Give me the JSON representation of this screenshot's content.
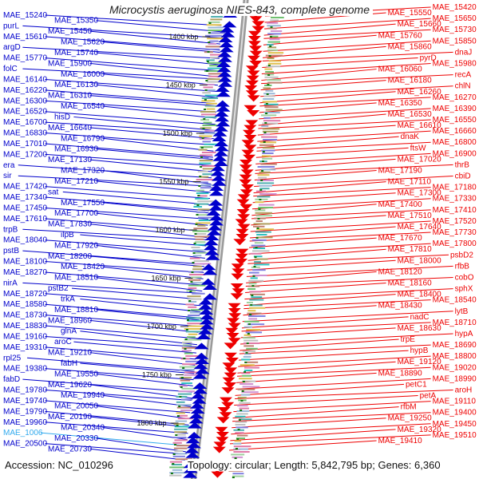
{
  "header": {
    "title": "Microcystis aeruginosa NIES-843, complete genome"
  },
  "footer": {
    "accession": "Accession: NC_010296",
    "topology": "Topology: circular; Length: 5,842,795 bp; Genes: 6,360"
  },
  "colors": {
    "minus_strand": "#0000cc",
    "plus_strand": "#ee0000",
    "highlight": "#33aaee",
    "backbone": "#888888",
    "tick_marks": "#117711"
  },
  "scale_labels": [
    "1400 kbp",
    "1450 kbp",
    "1500 kbp",
    "1550 kbp",
    "1600 kbp",
    "1650 kbp",
    "1700 kbp",
    "1750 kbp",
    "1800 kbp"
  ],
  "left_genes": [
    "MAE_15240",
    "MAE_15350",
    "purL",
    "MAE_15450",
    "MAE_15610",
    "MAE_15620",
    "argD",
    "MAE_15740",
    "MAE_15770",
    "MAE_15900",
    "folC",
    "MAE_16000",
    "MAE_16140",
    "MAE_16130",
    "MAE_16220",
    "MAE_16310",
    "MAE_16300",
    "MAE_16540",
    "MAE_16520",
    "hisD",
    "MAE_16700",
    "MAE_16640",
    "MAE_16830",
    "MAE_16790",
    "MAE_17010",
    "MAE_16930",
    "MAE_17200",
    "MAE_17130",
    "era",
    "MAE_17320",
    "sir",
    "MAE_17210",
    "MAE_17420",
    "sat",
    "MAE_17340",
    "MAE_17550",
    "MAE_17450",
    "MAE_17700",
    "MAE_17610",
    "MAE_17830",
    "trpB",
    "ilpB",
    "MAE_18040",
    "MAE_17920",
    "pstB",
    "MAE_18200",
    "MAE_18100",
    "MAE_18420",
    "MAE_18270",
    "MAE_18510",
    "nirA",
    "pstB2",
    "MAE_18720",
    "trkA",
    "MAE_18580",
    "MAE_18810",
    "MAE_18730",
    "MAE_18960",
    "MAE_18830",
    "glnA",
    "MAE_19160",
    "aroC",
    "MAE_19310",
    "MAE_19210",
    "rpl25",
    "fabH",
    "MAE_19380",
    "MAE_19550",
    "fabD",
    "MAE_19620",
    "MAE_19780",
    "MAE_19940",
    "MAE_19740",
    "MAE_20050",
    "MAE_19790",
    "MAE_20190",
    "MAE_19960",
    "MAE_20340",
    "MAE_1006",
    "MAE_20330",
    "MAE_20500",
    "MAE_20730"
  ],
  "right_genes": [
    "MAE_15420",
    "MAE_15550",
    "MAE_15650",
    "MAE_15660",
    "MAE_15730",
    "MAE_15760",
    "MAE_15850",
    "MAE_15860",
    "dnaJ",
    "pyrD",
    "MAE_15980",
    "MAE_16060",
    "recA",
    "MAE_16180",
    "chlN",
    "MAE_16260",
    "MAE_16270",
    "MAE_16350",
    "MAE_16390",
    "MAE_16530",
    "MAE_16550",
    "MAE_16610",
    "MAE_16660",
    "dnaK",
    "MAE_16800",
    "ftsW",
    "MAE_16900",
    "MAE_17020",
    "thrB",
    "MAE_17190",
    "cbiD",
    "MAE_17110",
    "MAE_17180",
    "MAE_17300",
    "MAE_17330",
    "MAE_17400",
    "MAE_17410",
    "MAE_17510",
    "MAE_17520",
    "MAE_17640",
    "MAE_17730",
    "MAE_17670",
    "MAE_17800",
    "MAE_17810",
    "psbD2",
    "MAE_18000",
    "rfbB",
    "MAE_18120",
    "cobO",
    "MAE_18160",
    "sphX",
    "MAE_18400",
    "MAE_18540",
    "MAE_18430",
    "lytB",
    "nadC",
    "MAE_18710",
    "MAE_18630",
    "hypA",
    "trpE",
    "MAE_18690",
    "hypB",
    "MAE_18800",
    "MAE_19120",
    "MAE_19020",
    "MAE_18890",
    "MAE_18990",
    "petC1",
    "aroH",
    "petA",
    "MAE_19110",
    "rfbM",
    "MAE_19400",
    "MAE_19250",
    "MAE_19450",
    "MAE_19320",
    "MAE_19510",
    "MAE_19410"
  ]
}
